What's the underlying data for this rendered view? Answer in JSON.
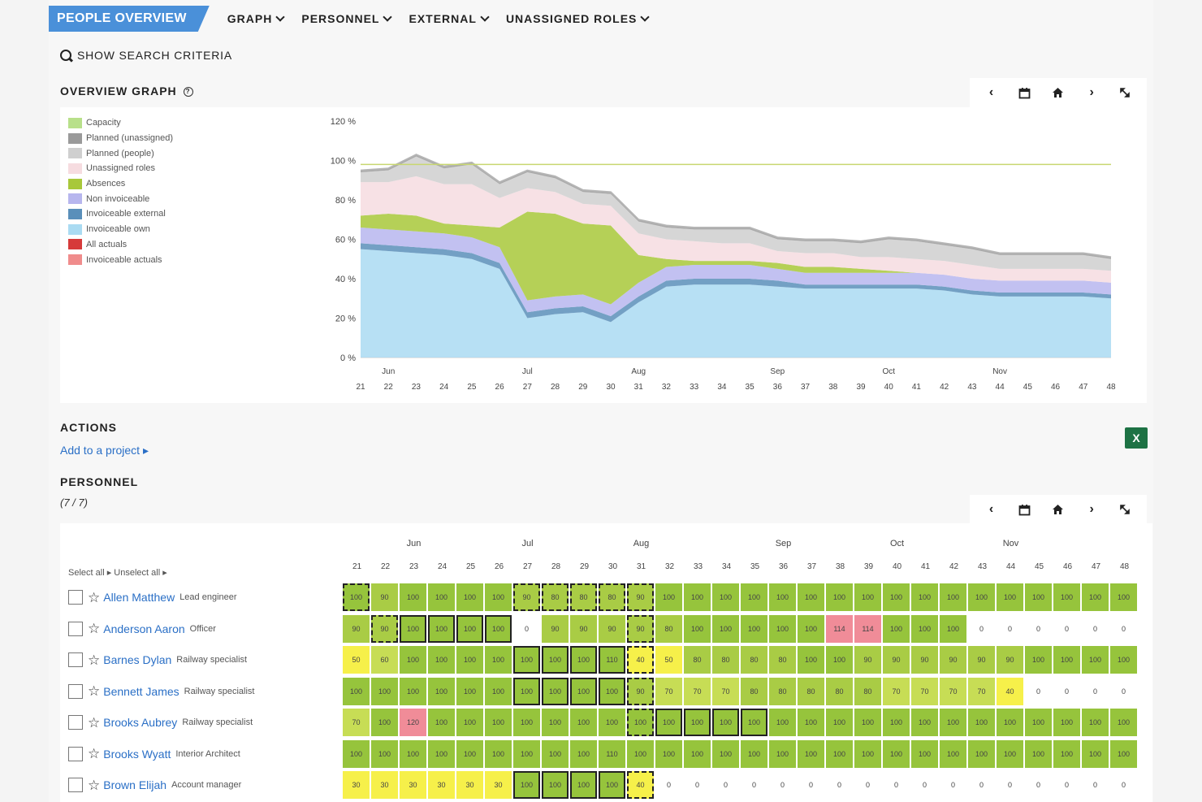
{
  "nav": {
    "active": "PEOPLE OVERVIEW",
    "items": [
      "GRAPH",
      "PERSONNEL",
      "EXTERNAL",
      "UNASSIGNED ROLES"
    ]
  },
  "search_toggle": "SHOW SEARCH CRITERIA",
  "graph_section": {
    "title": "OVERVIEW GRAPH",
    "info": "?"
  },
  "toolbar": {
    "prev": "‹",
    "calendar": "calendar-icon",
    "home": "home-icon",
    "next": "›",
    "expand": "expand-icon"
  },
  "legend": [
    {
      "label": "Capacity",
      "color": "#b8e08a"
    },
    {
      "label": "Planned (unassigned)",
      "color": "#9a9a9a"
    },
    {
      "label": "Planned (people)",
      "color": "#cfcfcf"
    },
    {
      "label": "Unassigned roles",
      "color": "#f6dce0"
    },
    {
      "label": "Absences",
      "color": "#a8c83a"
    },
    {
      "label": "Non invoiceable",
      "color": "#b7b6ee"
    },
    {
      "label": "Invoiceable external",
      "color": "#5a8fba"
    },
    {
      "label": "Invoiceable own",
      "color": "#aadbf2"
    },
    {
      "label": "All actuals",
      "color": "#d63a3a"
    },
    {
      "label": "Invoiceable actuals",
      "color": "#f08c8c"
    }
  ],
  "chart_data": {
    "type": "area",
    "y_ticks": [
      "120 %",
      "100 %",
      "80 %",
      "60 %",
      "40 %",
      "20 %",
      "0 %"
    ],
    "ylim": [
      0,
      120
    ],
    "months": [
      "Jun",
      "Jul",
      "Aug",
      "Sep",
      "Oct",
      "Nov"
    ],
    "x": [
      "21",
      "22",
      "23",
      "24",
      "25",
      "26",
      "27",
      "28",
      "29",
      "30",
      "31",
      "32",
      "33",
      "34",
      "35",
      "36",
      "37",
      "38",
      "39",
      "40",
      "41",
      "42",
      "43",
      "44",
      "45",
      "46",
      "47",
      "48"
    ],
    "capacity_line": [
      98,
      98,
      98,
      98,
      98,
      98,
      98,
      98,
      98,
      98,
      98,
      98,
      98,
      98,
      98,
      98,
      98,
      98,
      98,
      98,
      98,
      98,
      98,
      98,
      98,
      98,
      98,
      98
    ],
    "series": [
      {
        "name": "Invoiceable own",
        "values": [
          55,
          54,
          53,
          52,
          50,
          45,
          20,
          22,
          23,
          18,
          28,
          36,
          37,
          37,
          37,
          36,
          35,
          35,
          35,
          35,
          35,
          34,
          32,
          31,
          31,
          31,
          31,
          30
        ]
      },
      {
        "name": "Invoiceable external",
        "values": [
          3,
          3,
          3,
          3,
          3,
          3,
          3,
          3,
          3,
          3,
          3,
          3,
          3,
          3,
          3,
          3,
          2,
          2,
          2,
          2,
          2,
          2,
          2,
          2,
          2,
          2,
          2,
          2
        ]
      },
      {
        "name": "Non invoiceable",
        "values": [
          8,
          8,
          8,
          8,
          8,
          8,
          6,
          6,
          6,
          6,
          7,
          7,
          7,
          7,
          7,
          6,
          6,
          6,
          6,
          6,
          6,
          6,
          6,
          6,
          6,
          6,
          6,
          6
        ]
      },
      {
        "name": "Absences",
        "values": [
          6,
          8,
          8,
          5,
          6,
          10,
          45,
          42,
          36,
          40,
          14,
          4,
          2,
          2,
          2,
          3,
          3,
          3,
          2,
          1,
          0,
          0,
          0,
          0,
          0,
          0,
          0,
          0
        ]
      },
      {
        "name": "Unassigned roles",
        "values": [
          17,
          16,
          20,
          20,
          21,
          15,
          12,
          11,
          10,
          10,
          11,
          10,
          10,
          9,
          9,
          6,
          7,
          7,
          6,
          7,
          7,
          7,
          7,
          6,
          6,
          6,
          6,
          6
        ]
      },
      {
        "name": "Planned (people)",
        "values": [
          5,
          6,
          10,
          8,
          10,
          7,
          8,
          7,
          6,
          6,
          6,
          6,
          6,
          7,
          7,
          6,
          6,
          6,
          7,
          9,
          9,
          8,
          8,
          7,
          7,
          7,
          7,
          6
        ]
      },
      {
        "name": "Planned (unassigned)",
        "values": [
          1,
          1,
          1,
          1,
          1,
          1,
          1,
          1,
          1,
          1,
          1,
          1,
          1,
          1,
          1,
          1,
          1,
          1,
          1,
          1,
          1,
          1,
          1,
          1,
          1,
          1,
          1,
          1
        ]
      }
    ]
  },
  "actions": {
    "title": "ACTIONS",
    "add_link": "Add to a project ▸"
  },
  "personnel": {
    "title": "PERSONNEL",
    "count": "(7 / 7)",
    "select_all": "Select all ▸",
    "unselect_all": "Unselect all ▸",
    "months": [
      "Jun",
      "Jul",
      "Aug",
      "Sep",
      "Oct",
      "Nov"
    ],
    "weeks": [
      "21",
      "22",
      "23",
      "24",
      "25",
      "26",
      "27",
      "28",
      "29",
      "30",
      "31",
      "32",
      "33",
      "34",
      "35",
      "36",
      "37",
      "38",
      "39",
      "40",
      "41",
      "42",
      "43",
      "44",
      "45",
      "46",
      "47",
      "48"
    ],
    "people": [
      {
        "name": "Allen Matthew",
        "role": "Lead engineer",
        "values": [
          "100",
          "90",
          "100",
          "100",
          "100",
          "100",
          "90",
          "80",
          "80",
          "80",
          "90",
          "100",
          "100",
          "100",
          "100",
          "100",
          "100",
          "100",
          "100",
          "100",
          "100",
          "100",
          "100",
          "100",
          "100",
          "100",
          "100",
          "100"
        ]
      },
      {
        "name": "Anderson Aaron",
        "role": "Officer",
        "values": [
          "90",
          "90",
          "100",
          "100",
          "100",
          "100",
          "0",
          "90",
          "90",
          "90",
          "90",
          "80",
          "100",
          "100",
          "100",
          "100",
          "100",
          "114",
          "114",
          "100",
          "100",
          "100",
          "0",
          "0",
          "0",
          "0",
          "0",
          "0"
        ]
      },
      {
        "name": "Barnes Dylan",
        "role": "Railway specialist",
        "values": [
          "50",
          "60",
          "100",
          "100",
          "100",
          "100",
          "100",
          "100",
          "100",
          "110",
          "40",
          "50",
          "80",
          "80",
          "80",
          "80",
          "100",
          "100",
          "90",
          "90",
          "90",
          "90",
          "90",
          "90",
          "100",
          "100",
          "100",
          "100"
        ]
      },
      {
        "name": "Bennett James",
        "role": "Railway specialist",
        "values": [
          "100",
          "100",
          "100",
          "100",
          "100",
          "100",
          "100",
          "100",
          "100",
          "100",
          "90",
          "70",
          "70",
          "70",
          "80",
          "80",
          "80",
          "80",
          "80",
          "70",
          "70",
          "70",
          "70",
          "40",
          "0",
          "0",
          "0",
          "0"
        ]
      },
      {
        "name": "Brooks Aubrey",
        "role": "Railway specialist",
        "values": [
          "70",
          "100",
          "120",
          "100",
          "100",
          "100",
          "100",
          "100",
          "100",
          "100",
          "100",
          "100",
          "100",
          "100",
          "100",
          "100",
          "100",
          "100",
          "100",
          "100",
          "100",
          "100",
          "100",
          "100",
          "100",
          "100",
          "100",
          "100"
        ]
      },
      {
        "name": "Brooks Wyatt",
        "role": "Interior Architect",
        "values": [
          "100",
          "100",
          "100",
          "100",
          "100",
          "100",
          "100",
          "100",
          "100",
          "110",
          "100",
          "100",
          "100",
          "100",
          "100",
          "100",
          "100",
          "100",
          "100",
          "100",
          "100",
          "100",
          "100",
          "100",
          "100",
          "100",
          "100",
          "100"
        ]
      },
      {
        "name": "Brown Elijah",
        "role": "Account manager",
        "values": [
          "30",
          "30",
          "30",
          "30",
          "30",
          "30",
          "100",
          "100",
          "100",
          "100",
          "40",
          "0",
          "0",
          "0",
          "0",
          "0",
          "0",
          "0",
          "0",
          "0",
          "0",
          "0",
          "0",
          "0",
          "0",
          "0",
          "0",
          "0"
        ]
      }
    ]
  }
}
